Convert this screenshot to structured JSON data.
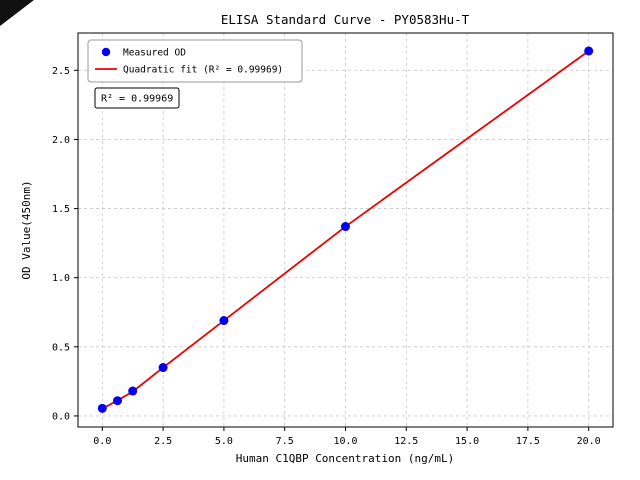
{
  "chart_data": {
    "type": "scatter",
    "title": "ELISA Standard Curve - PY0583Hu-T",
    "xlabel": "Human C1QBP Concentration (ng/mL)",
    "ylabel": "OD Value(450nm)",
    "xlim": [
      -1,
      21
    ],
    "ylim": [
      -0.08,
      2.77
    ],
    "x_ticks": [
      "0.0",
      "2.5",
      "5.0",
      "7.5",
      "10.0",
      "12.5",
      "15.0",
      "17.5",
      "20.0"
    ],
    "y_ticks": [
      "0.0",
      "0.5",
      "1.0",
      "1.5",
      "2.0",
      "2.5"
    ],
    "grid": true,
    "legend_position": "upper left",
    "series": [
      {
        "name": "Measured OD",
        "type": "scatter",
        "color": "#0000ee",
        "x": [
          0,
          0.625,
          1.25,
          2.5,
          5,
          10,
          20
        ],
        "y": [
          0.055,
          0.11,
          0.18,
          0.35,
          0.69,
          1.37,
          2.64
        ]
      },
      {
        "name": "Quadratic fit (R² = 0.99969)",
        "type": "line",
        "color": "#ee0000",
        "x": [
          0,
          0.625,
          1.25,
          2.5,
          5,
          10,
          20
        ],
        "y": [
          0.052,
          0.112,
          0.176,
          0.35,
          0.69,
          1.37,
          2.64
        ]
      }
    ],
    "annotation": "R² = 0.99969"
  }
}
